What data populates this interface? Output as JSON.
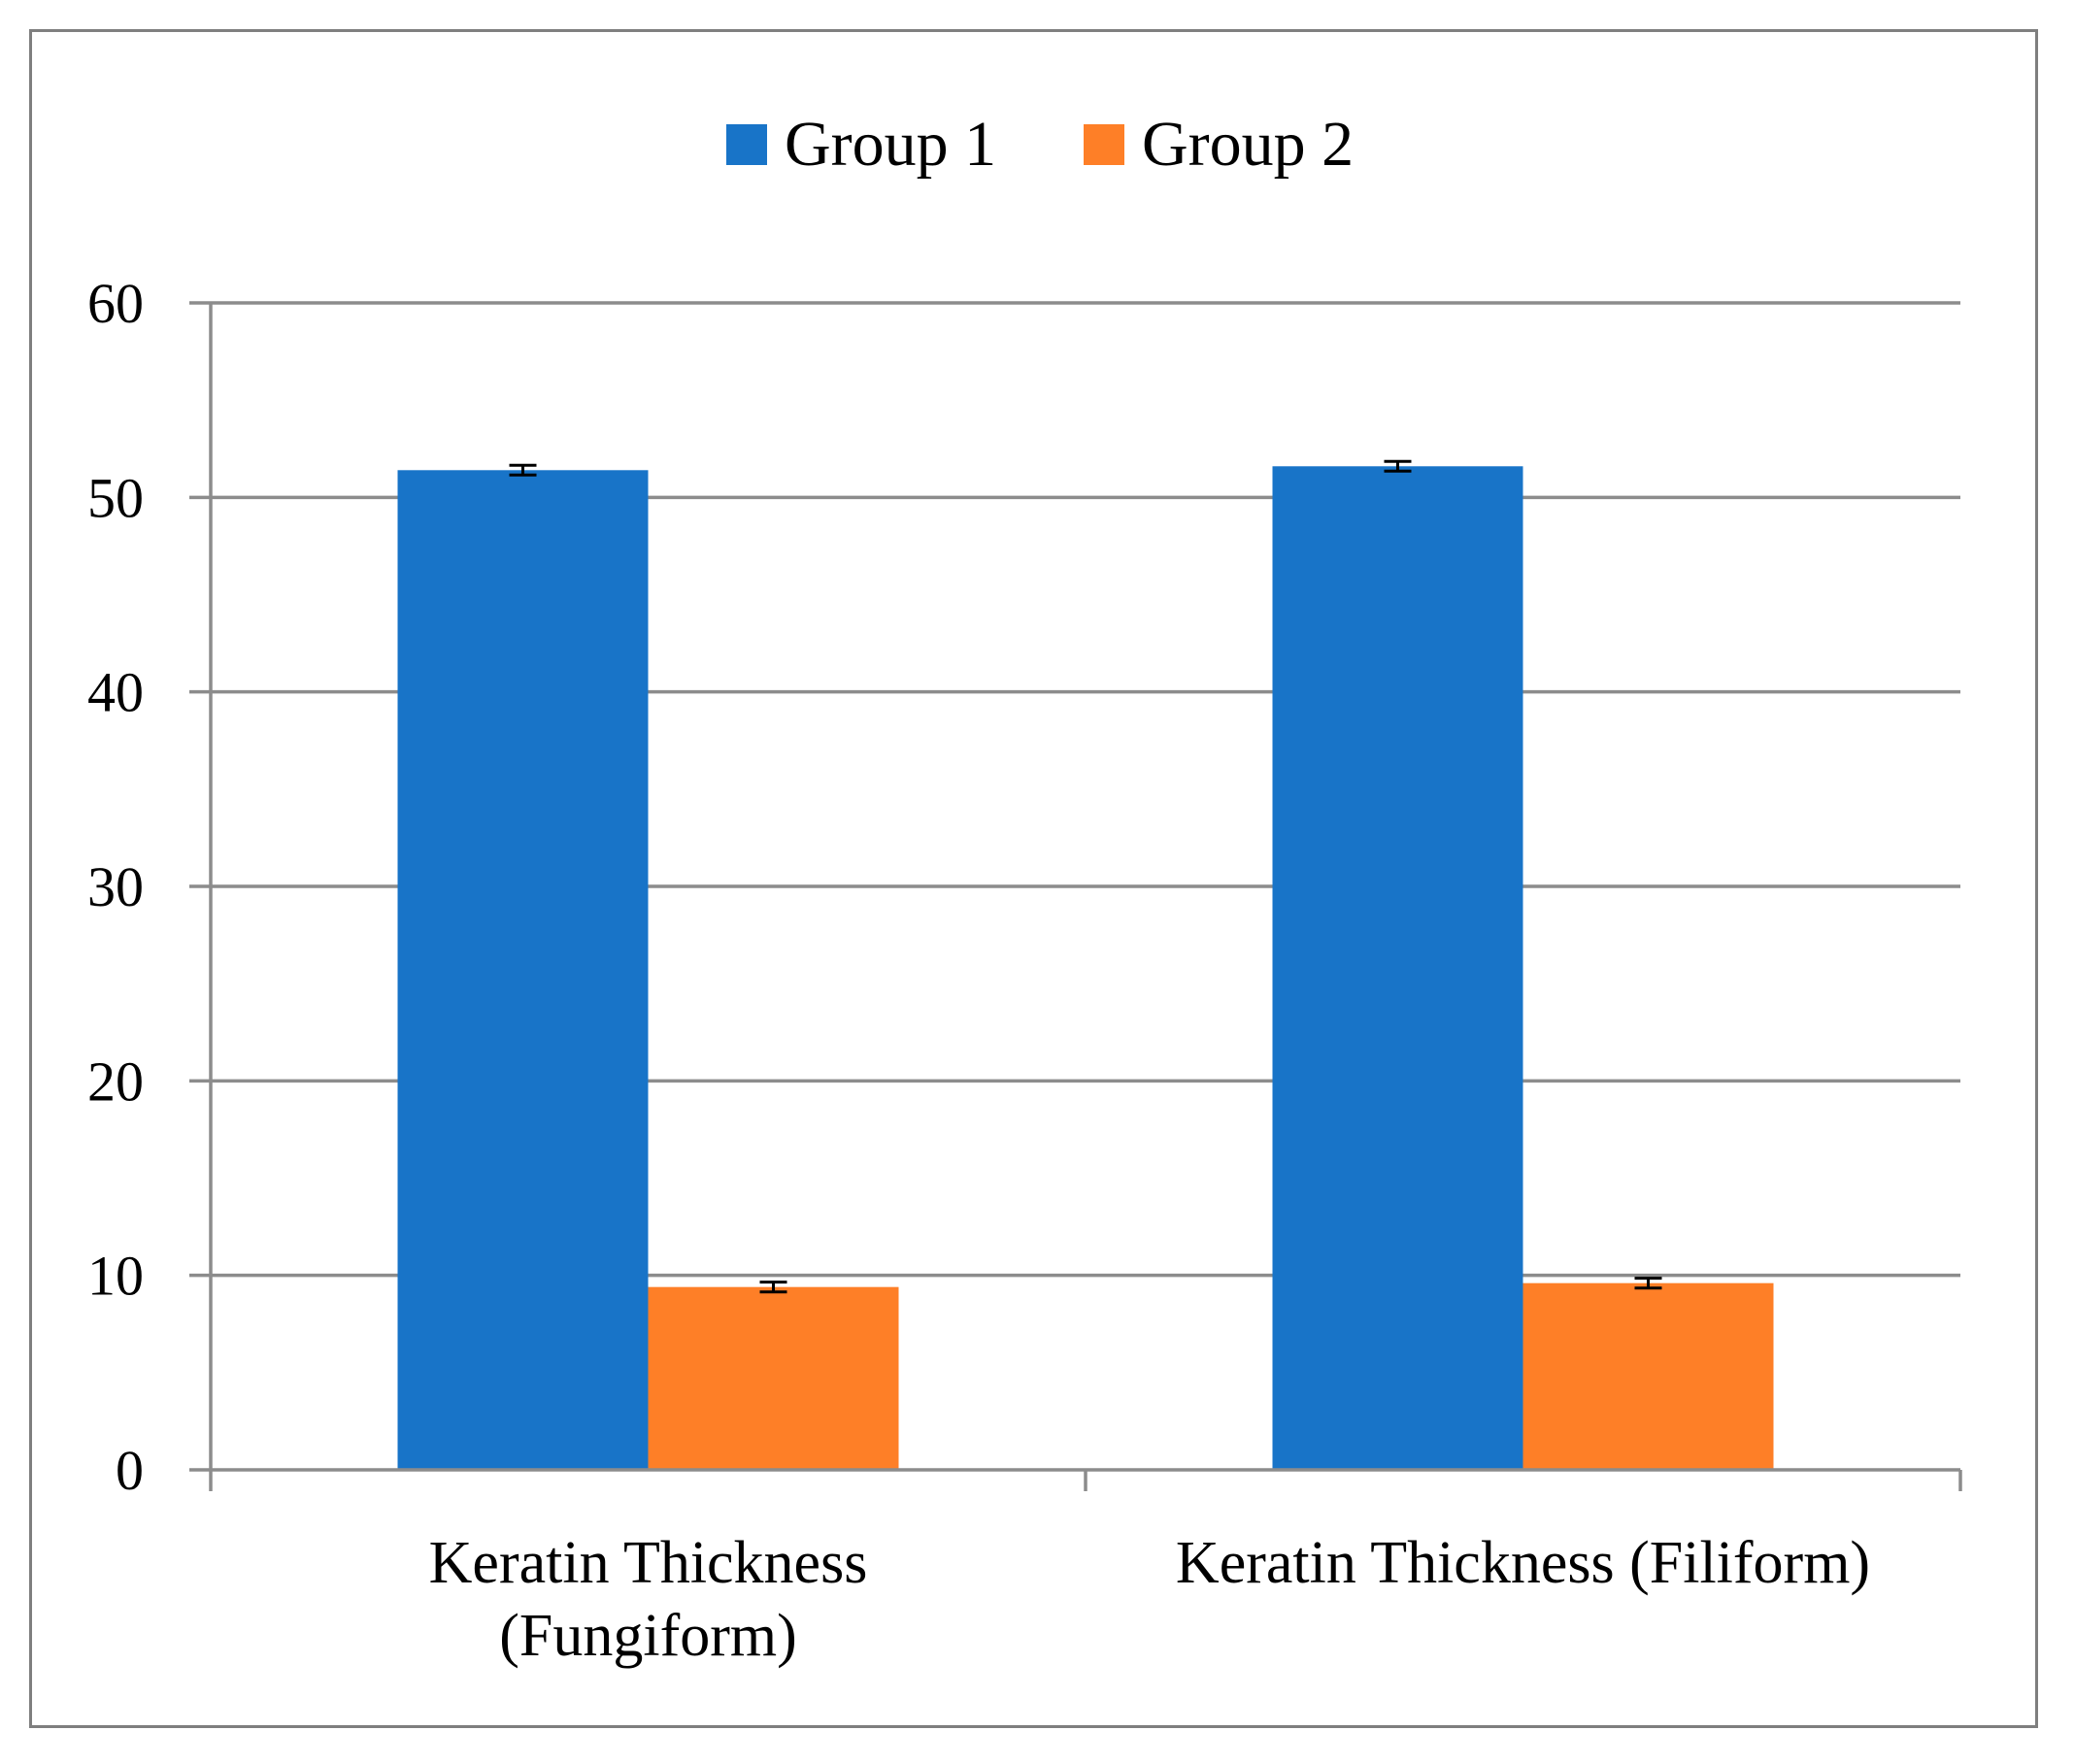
{
  "chart_data": {
    "type": "bar",
    "title": "",
    "xlabel": "",
    "ylabel": "",
    "ylim": [
      0,
      60
    ],
    "yticks": [
      0,
      10,
      20,
      30,
      40,
      50,
      60
    ],
    "grid": true,
    "legend_position": "top",
    "categories": [
      [
        "Keratin Thickness",
        "(Fungiform)"
      ],
      [
        "Keratin Thickness (Filiform)"
      ]
    ],
    "series": [
      {
        "name": "Group 1",
        "color": "#1874c8",
        "values": [
          51.4,
          51.6
        ],
        "errors": [
          0.25,
          0.25
        ]
      },
      {
        "name": "Group 2",
        "color": "#fe7f27",
        "values": [
          9.4,
          9.6
        ],
        "errors": [
          0.25,
          0.25
        ]
      }
    ]
  }
}
